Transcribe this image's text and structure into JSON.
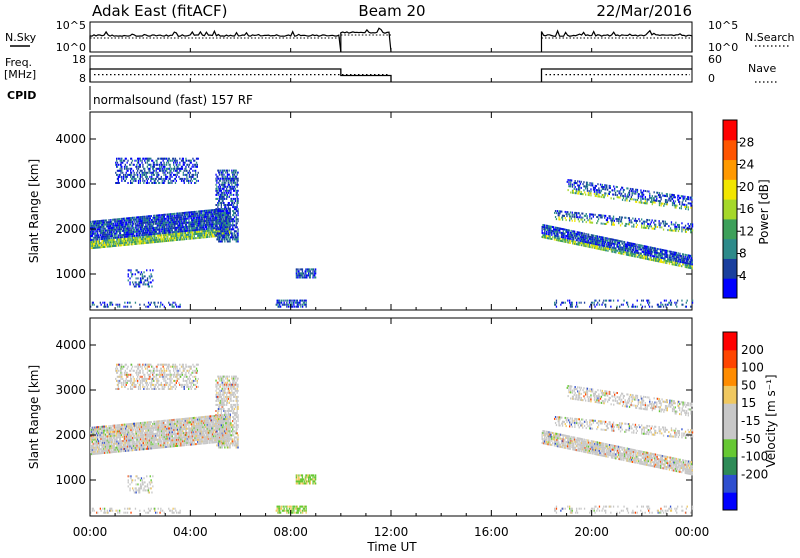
{
  "chart_data": {
    "type": "heatmap",
    "header": {
      "station": "Adak East (fitACF)",
      "beam": "Beam 20",
      "date": "22/Mar/2016"
    },
    "colors": {
      "ink": "#000000",
      "power_scale": [
        "#0000ff",
        "#1a3f9e",
        "#2d8a8a",
        "#3da05a",
        "#a5d82a",
        "#f2e600",
        "#ff9900",
        "#ff5500",
        "#ff0000"
      ],
      "velocity_scale": [
        "#ff0000",
        "#ff4500",
        "#ff8c00",
        "#f0c860",
        "#c8c8c8",
        "#c8c8c8",
        "#66c833",
        "#2e8b57",
        "#2f4fcf",
        "#0000ff"
      ]
    },
    "time_axis": {
      "label": "Time UT",
      "ticks": [
        "00:00",
        "04:00",
        "08:00",
        "12:00",
        "16:00",
        "20:00",
        "00:00"
      ],
      "tick_hours": [
        0,
        4,
        8,
        12,
        16,
        20,
        24
      ],
      "range_hours": [
        0,
        24
      ]
    },
    "noise_panel": {
      "left_label": "N.Sky",
      "right_label": "N.Search",
      "left_ticks": [
        "10^5",
        "10^0"
      ],
      "right_ticks": [
        "10^5",
        "10^0"
      ],
      "segments": [
        {
          "start": 0.0,
          "end": 10.0,
          "level": 0.55
        },
        {
          "start": 10.0,
          "end": 12.0,
          "level": 0.65
        },
        {
          "start": 18.0,
          "end": 24.0,
          "level": 0.55
        }
      ],
      "gap": [
        12.0,
        18.0
      ]
    },
    "freq_panel": {
      "left_label_1": "Freq.",
      "left_label_2": "[MHz]",
      "right_label": "Nave",
      "left_ticks": [
        "18",
        "8"
      ],
      "right_ticks": [
        "60",
        "0"
      ],
      "freq_segments": [
        {
          "start": 0.0,
          "end": 10.0,
          "value": 13.0
        },
        {
          "start": 10.0,
          "end": 12.0,
          "value": 10.5
        },
        {
          "start": 18.0,
          "end": 24.0,
          "value": 13.0
        }
      ],
      "nave_value": 17,
      "freq_range": [
        8,
        18
      ],
      "nave_range": [
        0,
        60
      ]
    },
    "cpid_panel": {
      "label": "CPID",
      "text": "normalsound (fast) 157 RF"
    },
    "power_panel": {
      "ylabel": "Slant Range [km]",
      "ylim": [
        200,
        4600
      ],
      "yticks": [
        "1000",
        "2000",
        "3000",
        "4000"
      ],
      "ytick_values": [
        1000,
        2000,
        3000,
        4000
      ],
      "colorbar_label": "Power [dB]",
      "colorbar_ticks": [
        "4",
        "8",
        "12",
        "16",
        "20",
        "24",
        "28"
      ],
      "colorbar_values": [
        4,
        8,
        12,
        16,
        20,
        24,
        28
      ],
      "colorbar_range": [
        0,
        32
      ]
    },
    "velocity_panel": {
      "ylabel": "Slant Range [km]",
      "ylim": [
        200,
        4600
      ],
      "yticks": [
        "1000",
        "2000",
        "3000",
        "4000"
      ],
      "ytick_values": [
        1000,
        2000,
        3000,
        4000
      ],
      "colorbar_label": "Velocity [m s⁻¹]",
      "colorbar_ticks": [
        "200",
        "100",
        "50",
        "15",
        "-15",
        "-50",
        "-100",
        "-200"
      ]
    },
    "scatter_regions": [
      {
        "name": "main-band-morning",
        "t0": 0.0,
        "t1": 5.6,
        "r0": 1550,
        "r1": 2150,
        "ramp": 300,
        "density": 0.85
      },
      {
        "name": "rise-near-06",
        "t0": 5.0,
        "t1": 5.9,
        "r0": 1700,
        "r1": 3300,
        "ramp": 0,
        "density": 0.55
      },
      {
        "name": "upper-arc-morning",
        "t0": 1.0,
        "t1": 4.3,
        "r0": 3000,
        "r1": 3550,
        "ramp": 0,
        "density": 0.4
      },
      {
        "name": "mid-cluster-morning",
        "t0": 1.5,
        "t1": 2.5,
        "r0": 700,
        "r1": 1100,
        "ramp": 0,
        "density": 0.3
      },
      {
        "name": "cluster-08",
        "t0": 8.2,
        "t1": 9.0,
        "r0": 900,
        "r1": 1100,
        "ramp": 0,
        "density": 0.7
      },
      {
        "name": "near-range-morning",
        "t0": 0.0,
        "t1": 3.6,
        "r0": 250,
        "r1": 380,
        "ramp": 0,
        "density": 0.25
      },
      {
        "name": "near-range-08",
        "t0": 7.4,
        "t1": 8.6,
        "r0": 250,
        "r1": 400,
        "ramp": 0,
        "density": 0.6
      },
      {
        "name": "evening-lower-band",
        "t0": 18.0,
        "t1": 24.0,
        "r0": 1800,
        "r1": 2100,
        "ramp": -700,
        "density": 0.8
      },
      {
        "name": "evening-upper-band",
        "t0": 19.0,
        "t1": 24.0,
        "r0": 2800,
        "r1": 3100,
        "ramp": -400,
        "density": 0.4
      },
      {
        "name": "evening-mid-band",
        "t0": 18.5,
        "t1": 24.0,
        "r0": 2200,
        "r1": 2400,
        "ramp": -300,
        "density": 0.35
      },
      {
        "name": "evening-near-range",
        "t0": 18.5,
        "t1": 24.0,
        "r0": 250,
        "r1": 400,
        "ramp": 0,
        "density": 0.2
      }
    ]
  }
}
